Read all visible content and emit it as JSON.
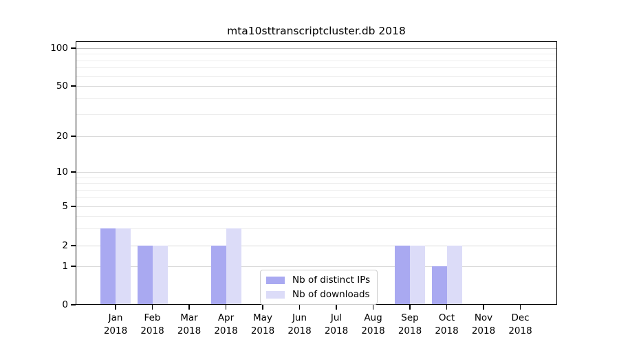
{
  "chart_data": {
    "type": "bar",
    "title": "mta10sttranscriptcluster.db 2018",
    "categories": [
      "Jan",
      "Feb",
      "Mar",
      "Apr",
      "May",
      "Jun",
      "Jul",
      "Aug",
      "Sep",
      "Oct",
      "Nov",
      "Dec"
    ],
    "year": "2018",
    "series": [
      {
        "name": "Nb of distinct IPs",
        "color": "#a9a9f1",
        "values": [
          3,
          2,
          0,
          2,
          0,
          0,
          0,
          0,
          2,
          1,
          0,
          0
        ]
      },
      {
        "name": "Nb of downloads",
        "color": "#dcdcf8",
        "values": [
          3,
          2,
          0,
          3,
          0,
          0,
          0,
          0,
          2,
          2,
          0,
          0
        ]
      }
    ],
    "yscale": "symlog",
    "yticks": [
      0,
      1,
      2,
      5,
      10,
      20,
      50,
      100
    ],
    "minor_yticks": [
      3,
      4,
      6,
      7,
      8,
      9,
      30,
      40,
      60,
      70,
      80,
      90
    ],
    "ylim": [
      0,
      100
    ],
    "xlabel": "",
    "ylabel": "",
    "grid": true,
    "legend_position": "lower center",
    "grid_colors": {
      "top_major": "#bdbdbd",
      "major": "#d9d9d9",
      "minor": "#ededed"
    }
  }
}
